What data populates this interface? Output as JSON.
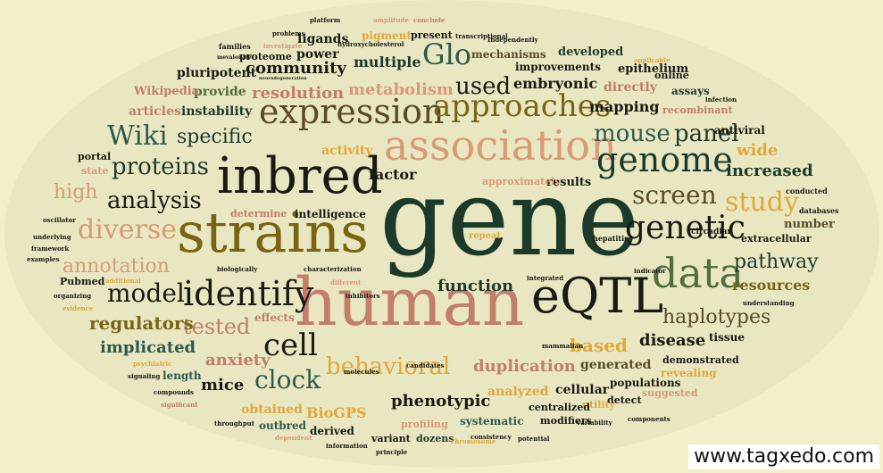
{
  "background_color": "#f1f0c9",
  "cloud_color": "#1a1f15",
  "palette": {
    "dark_green": "#1c3a2a",
    "black": "#1a1a14",
    "olive": "#7a6414",
    "gold": "#e0a838",
    "salmon": "#d99a76",
    "rose": "#c27d6b",
    "teal": "#2e5a4c",
    "brown": "#5a4a2a",
    "sage": "#4f6e3c",
    "light_gold": "#e7bc62"
  },
  "credit": "www.tagxedo.com",
  "words": [
    {
      "text": "gene",
      "size": 5
    },
    {
      "text": "strains",
      "size": 4
    },
    {
      "text": "human",
      "size": 4
    },
    {
      "text": "inbred",
      "size": 4
    },
    {
      "text": "association",
      "size": 3
    },
    {
      "text": "expression",
      "size": 3
    },
    {
      "text": "eQTL",
      "size": 3
    },
    {
      "text": "genome",
      "size": 3
    },
    {
      "text": "identify",
      "size": 3
    },
    {
      "text": "data",
      "size": 3
    },
    {
      "text": "genetic",
      "size": 3
    },
    {
      "text": "approaches",
      "size": 3
    },
    {
      "text": "cell",
      "size": 2
    },
    {
      "text": "model",
      "size": 2
    },
    {
      "text": "diverse",
      "size": 2
    },
    {
      "text": "screen",
      "size": 2
    },
    {
      "text": "study",
      "size": 2
    },
    {
      "text": "analysis",
      "size": 2
    },
    {
      "text": "proteins",
      "size": 2
    },
    {
      "text": "Wiki",
      "size": 2
    },
    {
      "text": "Glo",
      "size": 2
    },
    {
      "text": "clock",
      "size": 2
    },
    {
      "text": "behavioral",
      "size": 2
    },
    {
      "text": "mouse",
      "size": 2
    },
    {
      "text": "panel",
      "size": 2
    },
    {
      "text": "annotation",
      "size": 2
    },
    {
      "text": "high",
      "size": 2
    },
    {
      "text": "pathway",
      "size": 2
    },
    {
      "text": "haplotypes",
      "size": 2
    },
    {
      "text": "used",
      "size": 2
    },
    {
      "text": "specific",
      "size": 2
    },
    {
      "text": "tested",
      "size": 2
    },
    {
      "text": "community",
      "size": 1
    },
    {
      "text": "resolution",
      "size": 1
    },
    {
      "text": "metabolism",
      "size": 1
    },
    {
      "text": "mapping",
      "size": 1
    },
    {
      "text": "function",
      "size": 1
    },
    {
      "text": "duplication",
      "size": 1
    },
    {
      "text": "based",
      "size": 1
    },
    {
      "text": "disease",
      "size": 1
    },
    {
      "text": "anxiety",
      "size": 1
    },
    {
      "text": "mice",
      "size": 1
    },
    {
      "text": "regulators",
      "size": 1
    },
    {
      "text": "implicated",
      "size": 1
    },
    {
      "text": "phenotypic",
      "size": 1
    },
    {
      "text": "resources",
      "size": 1
    },
    {
      "text": "increased",
      "size": 1
    },
    {
      "text": "wide",
      "size": 1
    },
    {
      "text": "factor",
      "size": 1
    },
    {
      "text": "multiple",
      "size": 1
    },
    {
      "text": "embryonic",
      "size": 1
    },
    {
      "text": "directly",
      "size": 1
    },
    {
      "text": "generated",
      "size": 1
    },
    {
      "text": "analyzed",
      "size": 1
    },
    {
      "text": "cellular",
      "size": 1
    },
    {
      "text": "BioGPS",
      "size": 1
    },
    {
      "text": "obtained",
      "size": 1
    },
    {
      "text": "provide",
      "size": 1
    },
    {
      "text": "articles",
      "size": 1
    },
    {
      "text": "instability",
      "size": 1
    },
    {
      "text": "pluripotent",
      "size": 1
    },
    {
      "text": "power",
      "size": 1
    },
    {
      "text": "ligands",
      "size": 1
    },
    {
      "text": "epithelium",
      "size": 1
    },
    {
      "text": "developed",
      "size": 1
    },
    {
      "text": "improvements",
      "size": 1
    },
    {
      "text": "mechanisms",
      "size": 1
    },
    {
      "text": "recombinant",
      "size": 1
    },
    {
      "text": "antiviral",
      "size": 1
    },
    {
      "text": "assays",
      "size": 1
    },
    {
      "text": "online",
      "size": 1
    },
    {
      "text": "activity",
      "size": 1
    },
    {
      "text": "results",
      "size": 1
    },
    {
      "text": "intelligence",
      "size": 1
    },
    {
      "text": "determine",
      "size": 1
    },
    {
      "text": "number",
      "size": 1
    },
    {
      "text": "extracellular",
      "size": 1
    },
    {
      "text": "tissue",
      "size": 1
    },
    {
      "text": "demonstrated",
      "size": 1
    },
    {
      "text": "revealing",
      "size": 1
    },
    {
      "text": "populations",
      "size": 1
    },
    {
      "text": "detect",
      "size": 1
    },
    {
      "text": "utility",
      "size": 1
    },
    {
      "text": "centralized",
      "size": 1
    },
    {
      "text": "modifiers",
      "size": 1
    },
    {
      "text": "systematic",
      "size": 1
    },
    {
      "text": "profiling",
      "size": 1
    },
    {
      "text": "derived",
      "size": 1
    },
    {
      "text": "outbred",
      "size": 1
    },
    {
      "text": "dozens",
      "size": 1
    },
    {
      "text": "variant",
      "size": 1
    },
    {
      "text": "length",
      "size": 1
    },
    {
      "text": "effects",
      "size": 1
    },
    {
      "text": "Pubmed",
      "size": 1
    },
    {
      "text": "Wikipedia",
      "size": 1
    },
    {
      "text": "state",
      "size": 1
    },
    {
      "text": "portal",
      "size": 1
    },
    {
      "text": "proteome",
      "size": 1
    },
    {
      "text": "pigment",
      "size": 1
    },
    {
      "text": "present",
      "size": 1
    },
    {
      "text": "approximately",
      "size": 1
    },
    {
      "text": "suggested",
      "size": 1
    },
    {
      "text": "repeat",
      "size": 1
    },
    {
      "text": "hepatitis",
      "size": 1
    },
    {
      "text": "circadian",
      "size": 1
    },
    {
      "text": "conducted",
      "size": 1
    },
    {
      "text": "databases",
      "size": 1
    },
    {
      "text": "infection",
      "size": 1
    },
    {
      "text": "applicable",
      "size": 1
    },
    {
      "text": "families",
      "size": 1
    },
    {
      "text": "investigate",
      "size": 1
    },
    {
      "text": "mevalonate",
      "size": 1
    },
    {
      "text": "problems",
      "size": 1
    },
    {
      "text": "platform",
      "size": 1
    },
    {
      "text": "amplitude",
      "size": 1
    },
    {
      "text": "conclude",
      "size": 1
    },
    {
      "text": "transcriptional",
      "size": 1
    },
    {
      "text": "hydroxycholesterol",
      "size": 1
    },
    {
      "text": "Independently",
      "size": 1
    },
    {
      "text": "neurodegeneration",
      "size": 1
    },
    {
      "text": "oscillator",
      "size": 1
    },
    {
      "text": "underlying",
      "size": 1
    },
    {
      "text": "framework",
      "size": 1
    },
    {
      "text": "examples",
      "size": 1
    },
    {
      "text": "additional",
      "size": 1
    },
    {
      "text": "organizing",
      "size": 1
    },
    {
      "text": "evidence",
      "size": 1
    },
    {
      "text": "biologically",
      "size": 1
    },
    {
      "text": "characterization",
      "size": 1
    },
    {
      "text": "different",
      "size": 1
    },
    {
      "text": "inhibitors",
      "size": 1
    },
    {
      "text": "integrated",
      "size": 1
    },
    {
      "text": "indicator",
      "size": 1
    },
    {
      "text": "mammalian",
      "size": 1
    },
    {
      "text": "understanding",
      "size": 1
    },
    {
      "text": "candidates",
      "size": 1
    },
    {
      "text": "molecules",
      "size": 1
    },
    {
      "text": "psychiatric",
      "size": 1
    },
    {
      "text": "signaling",
      "size": 1
    },
    {
      "text": "compounds",
      "size": 1
    },
    {
      "text": "significant",
      "size": 1
    },
    {
      "text": "throughput",
      "size": 1
    },
    {
      "text": "dependent",
      "size": 1
    },
    {
      "text": "information",
      "size": 1
    },
    {
      "text": "principle",
      "size": 1
    },
    {
      "text": "chromosome",
      "size": 1
    },
    {
      "text": "consistency",
      "size": 1
    },
    {
      "text": "potential",
      "size": 1
    },
    {
      "text": "components",
      "size": 1
    },
    {
      "text": "variability",
      "size": 1
    }
  ]
}
